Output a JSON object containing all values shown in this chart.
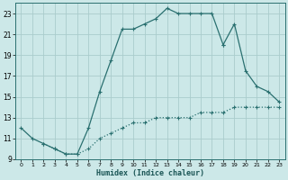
{
  "xlabel": "Humidex (Indice chaleur)",
  "bg_color": "#cce8e8",
  "grid_color": "#aacccc",
  "line_color": "#2a7070",
  "xlim": [
    -0.5,
    23.5
  ],
  "ylim": [
    9,
    24
  ],
  "yticks": [
    9,
    11,
    13,
    15,
    17,
    19,
    21,
    23
  ],
  "xticks": [
    0,
    1,
    2,
    3,
    4,
    5,
    6,
    7,
    8,
    9,
    10,
    11,
    12,
    13,
    14,
    15,
    16,
    17,
    18,
    19,
    20,
    21,
    22,
    23
  ],
  "line1_x": [
    0,
    1,
    2,
    3,
    4,
    5,
    6,
    7,
    8,
    9,
    10,
    11,
    12,
    13,
    14,
    15,
    16,
    17,
    18
  ],
  "line1_y": [
    12.0,
    11.0,
    10.5,
    10.0,
    9.5,
    9.5,
    12.0,
    15.5,
    18.5,
    21.5,
    21.5,
    22.0,
    22.5,
    23.5,
    23.0,
    23.0,
    23.0,
    23.0,
    20.0
  ],
  "line2_x": [
    18,
    19,
    20,
    21,
    22,
    23
  ],
  "line2_y": [
    20.0,
    22.0,
    17.5,
    16.0,
    15.5,
    14.5
  ],
  "line3_x": [
    2,
    3,
    4,
    5,
    6,
    7,
    8,
    9,
    10,
    11,
    12,
    13,
    14,
    15,
    16,
    17,
    18,
    19,
    20,
    21,
    22,
    23
  ],
  "line3_y": [
    10.5,
    10.0,
    9.5,
    9.5,
    10.0,
    11.0,
    11.5,
    12.0,
    12.5,
    12.5,
    13.0,
    13.0,
    13.0,
    13.0,
    13.5,
    13.5,
    13.5,
    14.0,
    14.0,
    14.0,
    14.0,
    14.0
  ]
}
